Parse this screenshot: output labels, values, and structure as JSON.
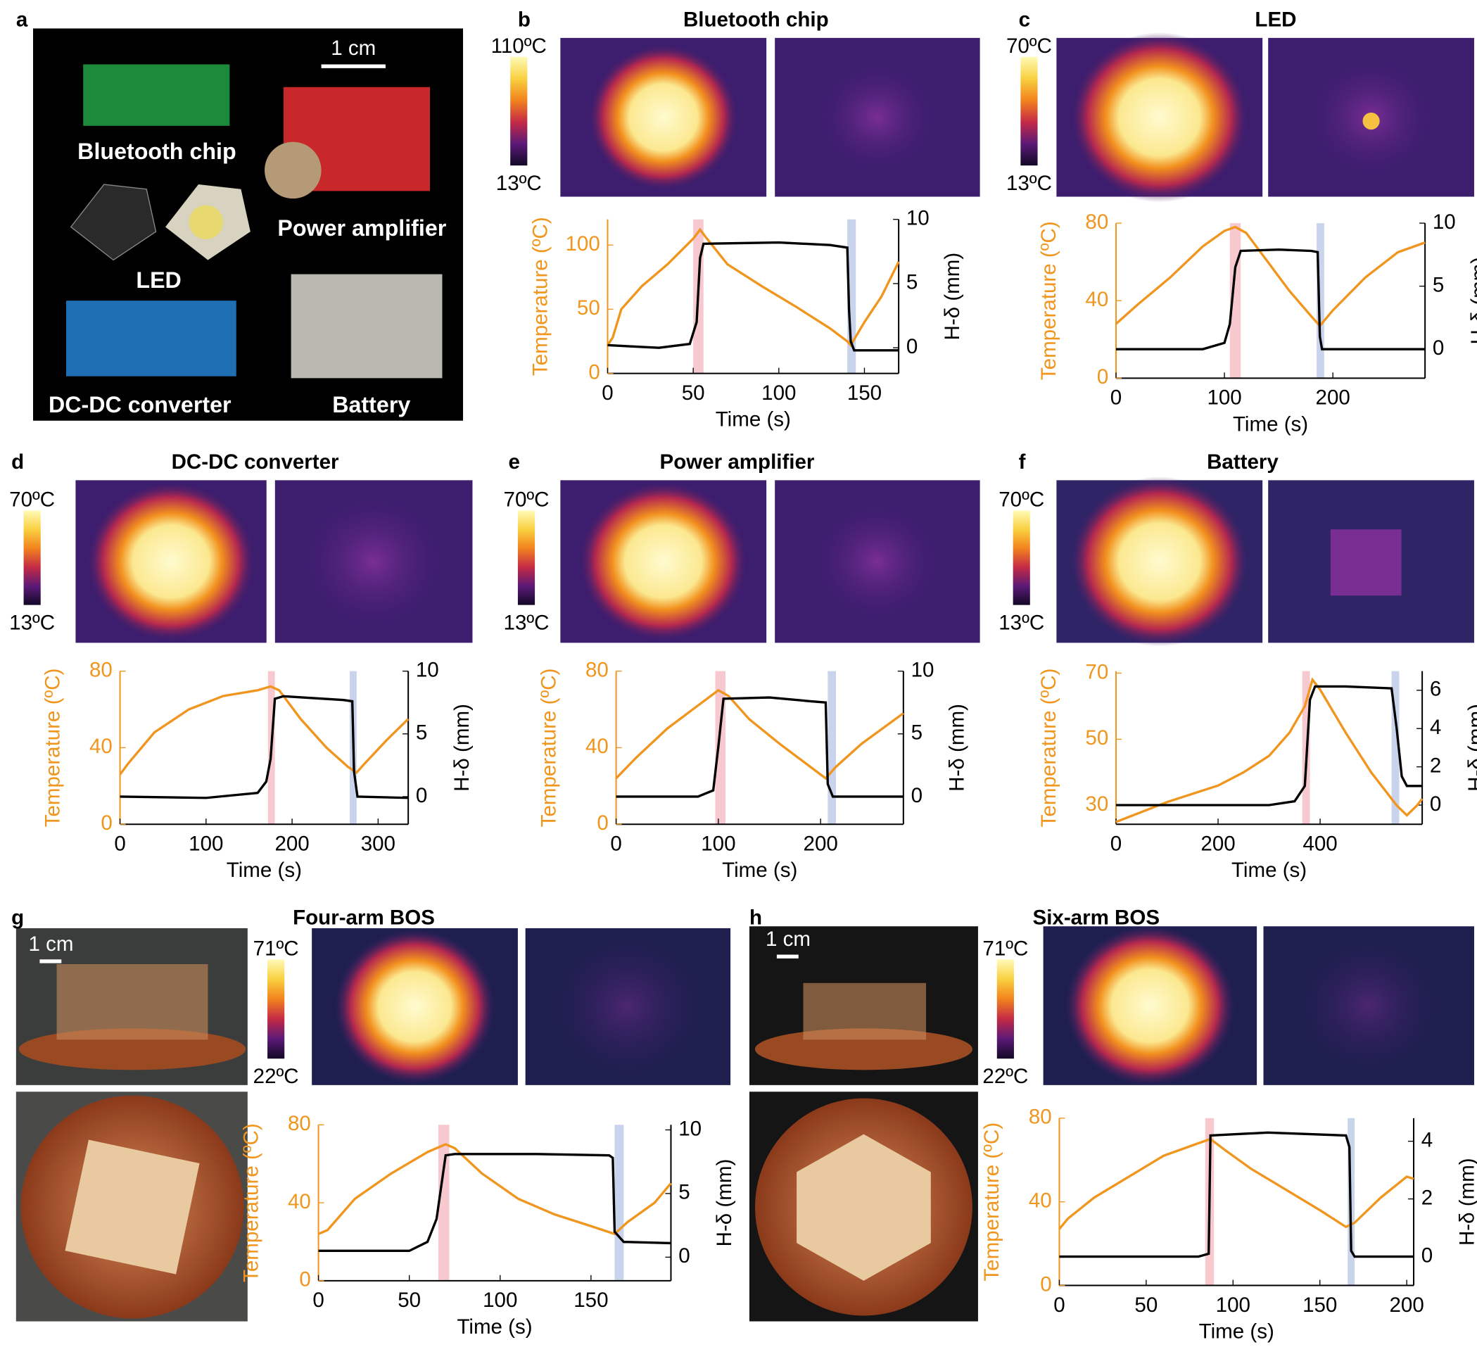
{
  "figure": {
    "panel_labels": [
      "a",
      "b",
      "c",
      "d",
      "e",
      "f",
      "g",
      "h"
    ],
    "photo_labels": [
      "Bluetooth chip",
      "Power amplifier",
      "LED",
      "DC-DC converter",
      "Battery"
    ],
    "scale_bars": [
      "1 cm",
      "1 cm",
      "1 cm"
    ],
    "colorbars": [
      {
        "max": "110ºC",
        "min": "13ºC"
      },
      {
        "max": "70ºC",
        "min": "13ºC"
      },
      {
        "max": "70ºC",
        "min": "13ºC"
      },
      {
        "max": "70ºC",
        "min": "13ºC"
      },
      {
        "max": "70ºC",
        "min": "13ºC"
      },
      {
        "max": "71ºC",
        "min": "22ºC"
      },
      {
        "max": "71ºC",
        "min": "22ºC"
      }
    ]
  },
  "chart_data": [
    {
      "type": "line",
      "title": "Bluetooth chip",
      "xlabel": "Time (s)",
      "ylabel": "Temperature (ºC)",
      "y2label": "H-δ (mm)",
      "xlim": [
        0,
        170
      ],
      "xticks": [
        0,
        50,
        100,
        150
      ],
      "ylim": [
        0,
        120
      ],
      "yticks": [
        0,
        50,
        100
      ],
      "y2lim": [
        -2,
        10
      ],
      "y2ticks": [
        0,
        5,
        10
      ],
      "series": [
        {
          "color": "#f0961e",
          "x": [
            0,
            3,
            8,
            20,
            35,
            50,
            54,
            58,
            70,
            90,
            110,
            130,
            140,
            142,
            150,
            160,
            170
          ],
          "values": [
            22,
            28,
            50,
            68,
            85,
            105,
            112,
            105,
            85,
            68,
            52,
            35,
            25,
            22,
            40,
            60,
            87
          ]
        },
        {
          "color": "#000000",
          "axis": "y2",
          "x": [
            0,
            30,
            48,
            52,
            54,
            56,
            100,
            130,
            140,
            141,
            142,
            144,
            170
          ],
          "values": [
            0.2,
            0,
            0.3,
            2,
            7,
            8.1,
            8.2,
            8,
            7.8,
            3,
            0.5,
            -0.2,
            -0.2
          ]
        }
      ],
      "highlights": [
        {
          "x": [
            50,
            56
          ],
          "color": "#f7c9cf"
        },
        {
          "x": [
            140,
            145
          ],
          "color": "#c9d4ec"
        }
      ]
    },
    {
      "type": "line",
      "title": "LED",
      "xlabel": "Time (s)",
      "ylabel": "Temperature (ºC)",
      "y2label": "H-δ (mm)",
      "xlim": [
        0,
        285
      ],
      "xticks": [
        0,
        100,
        200
      ],
      "ylim": [
        0,
        80
      ],
      "yticks": [
        0,
        40,
        80
      ],
      "y2lim": [
        -2.3,
        10
      ],
      "y2ticks": [
        0,
        5,
        10
      ],
      "series": [
        {
          "color": "#f0961e",
          "x": [
            0,
            20,
            50,
            80,
            100,
            110,
            120,
            140,
            160,
            180,
            188,
            200,
            230,
            260,
            285
          ],
          "values": [
            28,
            38,
            52,
            68,
            76,
            78,
            75,
            60,
            45,
            32,
            27,
            35,
            52,
            65,
            70
          ]
        },
        {
          "color": "#000000",
          "axis": "y2",
          "x": [
            0,
            80,
            100,
            105,
            110,
            115,
            150,
            180,
            186,
            188,
            190,
            285
          ],
          "values": [
            0,
            0,
            0.5,
            2,
            6.5,
            7.8,
            7.9,
            7.8,
            7.7,
            1,
            0,
            0
          ]
        }
      ],
      "highlights": [
        {
          "x": [
            105,
            115
          ],
          "color": "#f7c9cf"
        },
        {
          "x": [
            185,
            192
          ],
          "color": "#c9d4ec"
        }
      ]
    },
    {
      "type": "line",
      "title": "DC-DC converter",
      "xlabel": "Time (s)",
      "ylabel": "Temperature (ºC)",
      "y2label": "H-δ (mm)",
      "xlim": [
        0,
        335
      ],
      "xticks": [
        0,
        100,
        200,
        300
      ],
      "ylim": [
        0,
        80
      ],
      "yticks": [
        0,
        40,
        80
      ],
      "y2lim": [
        -2.2,
        10
      ],
      "y2ticks": [
        0,
        5,
        10
      ],
      "series": [
        {
          "color": "#f0961e",
          "x": [
            0,
            10,
            40,
            80,
            120,
            160,
            175,
            185,
            210,
            240,
            265,
            275,
            285,
            310,
            335
          ],
          "values": [
            26,
            32,
            48,
            60,
            67,
            70,
            72,
            70,
            55,
            40,
            30,
            27,
            32,
            44,
            55
          ]
        },
        {
          "color": "#000000",
          "axis": "y2",
          "x": [
            0,
            100,
            160,
            170,
            175,
            180,
            190,
            260,
            270,
            272,
            276,
            335
          ],
          "values": [
            0,
            -0.1,
            0.3,
            1.2,
            3,
            7.8,
            8,
            7.7,
            7.6,
            2,
            0,
            -0.1
          ]
        }
      ],
      "highlights": [
        {
          "x": [
            172,
            180
          ],
          "color": "#f7c9cf"
        },
        {
          "x": [
            267,
            275
          ],
          "color": "#c9d4ec"
        }
      ]
    },
    {
      "type": "line",
      "title": "Power amplifier",
      "xlabel": "Time (s)",
      "ylabel": "Temperature (ºC)",
      "y2label": "H-δ (mm)",
      "xlim": [
        0,
        281
      ],
      "xticks": [
        0,
        100,
        200
      ],
      "ylim": [
        0,
        80
      ],
      "yticks": [
        0,
        40,
        80
      ],
      "y2lim": [
        -2.2,
        10
      ],
      "y2ticks": [
        0,
        5,
        10
      ],
      "series": [
        {
          "color": "#f0961e",
          "x": [
            0,
            20,
            50,
            80,
            100,
            110,
            130,
            160,
            190,
            205,
            215,
            240,
            281
          ],
          "values": [
            24,
            35,
            50,
            62,
            70,
            67,
            55,
            42,
            30,
            24,
            30,
            42,
            58
          ]
        },
        {
          "color": "#000000",
          "axis": "y2",
          "x": [
            0,
            80,
            95,
            100,
            105,
            150,
            190,
            205,
            207,
            212,
            281
          ],
          "values": [
            0,
            0,
            0.5,
            4,
            7.8,
            7.9,
            7.6,
            7.5,
            1,
            0,
            0
          ]
        }
      ],
      "highlights": [
        {
          "x": [
            97,
            107
          ],
          "color": "#f7c9cf"
        },
        {
          "x": [
            207,
            215
          ],
          "color": "#c9d4ec"
        }
      ]
    },
    {
      "type": "line",
      "title": "Battery",
      "xlabel": "Time (s)",
      "ylabel": "Temperature (ºC)",
      "y2label": "H-δ (mm)",
      "xlim": [
        0,
        600
      ],
      "xticks": [
        0,
        200,
        400
      ],
      "ylim": [
        24.3,
        70.6
      ],
      "yticks": [
        30,
        50,
        70
      ],
      "y2lim": [
        -1,
        7
      ],
      "y2ticks": [
        0,
        2,
        4,
        6
      ],
      "series": [
        {
          "color": "#f0961e",
          "x": [
            0,
            50,
            100,
            200,
            250,
            300,
            340,
            370,
            385,
            400,
            450,
            500,
            550,
            570,
            590,
            600
          ],
          "values": [
            25,
            28,
            31,
            36,
            40,
            45,
            52,
            60,
            68,
            65,
            52,
            40,
            30,
            27,
            30,
            32
          ]
        },
        {
          "color": "#000000",
          "axis": "y2",
          "x": [
            0,
            300,
            350,
            370,
            380,
            390,
            450,
            540,
            550,
            560,
            570,
            600
          ],
          "values": [
            0,
            0,
            0.2,
            1,
            5.5,
            6.2,
            6.2,
            6.1,
            4,
            1.5,
            1,
            1
          ]
        }
      ],
      "highlights": [
        {
          "x": [
            365,
            380
          ],
          "color": "#f7c9cf"
        },
        {
          "x": [
            540,
            555
          ],
          "color": "#c9d4ec"
        }
      ]
    },
    {
      "type": "line",
      "title": "Four-arm BOS",
      "xlabel": "Time (s)",
      "ylabel": "Temperature (ºC)",
      "y2label": "H-δ (mm)",
      "xlim": [
        0,
        194
      ],
      "xticks": [
        0,
        50,
        100,
        150
      ],
      "ylim": [
        0,
        80
      ],
      "yticks": [
        0,
        40,
        80
      ],
      "y2lim": [
        -1.85,
        10.4
      ],
      "y2ticks": [
        0,
        5,
        10
      ],
      "series": [
        {
          "color": "#f0961e",
          "x": [
            0,
            5,
            20,
            40,
            60,
            70,
            75,
            90,
            110,
            130,
            150,
            163,
            170,
            185,
            194
          ],
          "values": [
            24,
            26,
            42,
            55,
            66,
            70,
            68,
            55,
            42,
            34,
            28,
            24,
            30,
            40,
            50
          ]
        },
        {
          "color": "#000000",
          "axis": "y2",
          "x": [
            0,
            50,
            60,
            65,
            70,
            75,
            120,
            160,
            162,
            163,
            168,
            194
          ],
          "values": [
            0.5,
            0.5,
            1.2,
            3,
            8,
            8.1,
            8.1,
            8,
            7.8,
            2,
            1.2,
            1.1
          ]
        }
      ],
      "highlights": [
        {
          "x": [
            66,
            72
          ],
          "color": "#f7c9cf"
        },
        {
          "x": [
            163,
            168
          ],
          "color": "#c9d4ec"
        }
      ]
    },
    {
      "type": "line",
      "title": "Six-arm BOS",
      "xlabel": "Time (s)",
      "ylabel": "Temperature (ºC)",
      "y2label": "H-δ (mm)",
      "xlim": [
        0,
        204
      ],
      "xticks": [
        0,
        50,
        100,
        150,
        200
      ],
      "ylim": [
        0,
        80
      ],
      "yticks": [
        0,
        40,
        80
      ],
      "y2lim": [
        -1,
        4.8
      ],
      "y2ticks": [
        0,
        2,
        4
      ],
      "series": [
        {
          "color": "#f0961e",
          "x": [
            0,
            5,
            20,
            40,
            60,
            80,
            87,
            95,
            110,
            130,
            150,
            165,
            170,
            185,
            200,
            204
          ],
          "values": [
            27,
            32,
            42,
            52,
            62,
            68,
            70,
            65,
            56,
            46,
            36,
            28,
            30,
            42,
            52,
            51
          ]
        },
        {
          "color": "#000000",
          "axis": "y2",
          "x": [
            0,
            80,
            86,
            87,
            120,
            165,
            167,
            168,
            170,
            204
          ],
          "values": [
            0,
            0,
            0.1,
            4.2,
            4.3,
            4.2,
            3.8,
            0.2,
            0,
            0
          ]
        }
      ],
      "highlights": [
        {
          "x": [
            84,
            89
          ],
          "color": "#f7c9cf"
        },
        {
          "x": [
            166,
            170
          ],
          "color": "#c9d4ec"
        }
      ]
    }
  ]
}
